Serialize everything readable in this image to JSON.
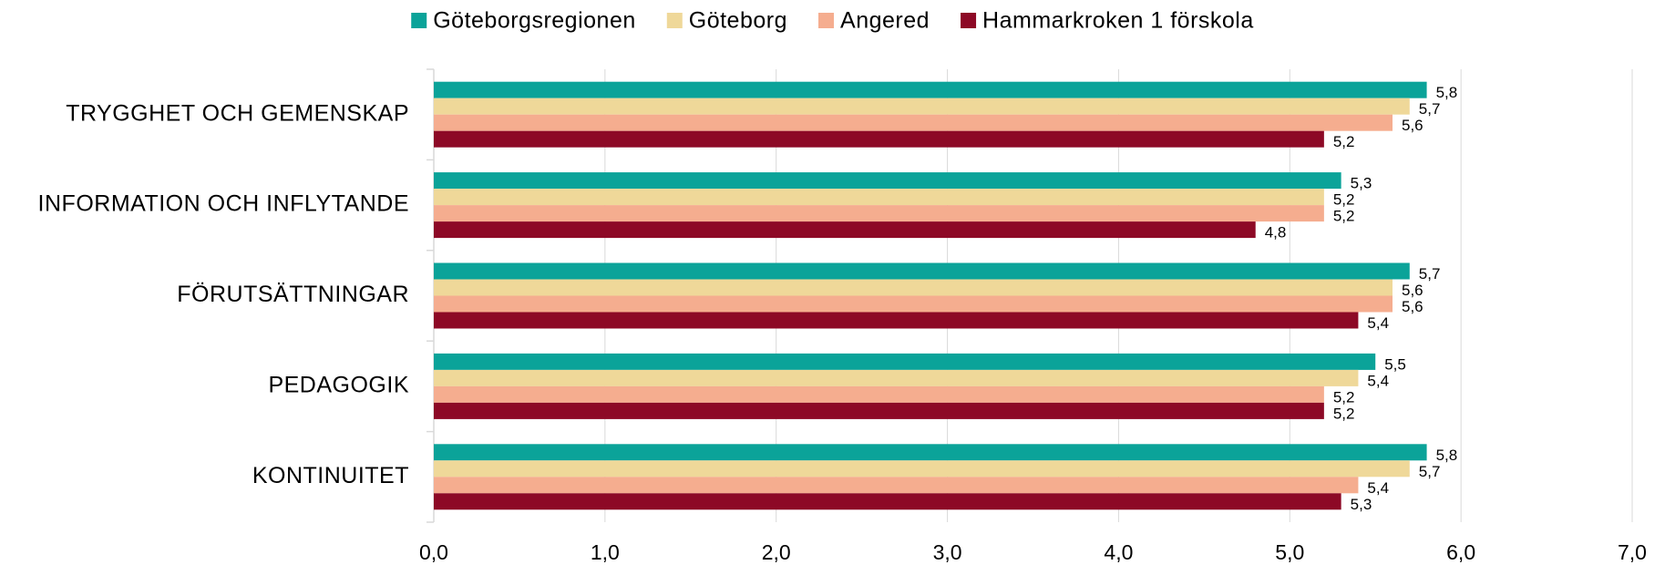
{
  "chart_data": {
    "type": "bar",
    "orientation": "horizontal",
    "categories": [
      "TRYGGHET OCH GEMENSKAP",
      "INFORMATION OCH INFLYTANDE",
      "FÖRUTSÄTTNINGAR",
      "PEDAGOGIK",
      "KONTINUITET"
    ],
    "series": [
      {
        "name": "Göteborgsregionen",
        "color": "#0ba399",
        "values": [
          5.8,
          5.3,
          5.7,
          5.5,
          5.8
        ],
        "value_labels": [
          "5,8",
          "5,3",
          "5,7",
          "5,5",
          "5,8"
        ]
      },
      {
        "name": "Göteborg",
        "color": "#efd899",
        "values": [
          5.7,
          5.2,
          5.6,
          5.4,
          5.7
        ],
        "value_labels": [
          "5,7",
          "5,2",
          "5,6",
          "5,4",
          "5,7"
        ]
      },
      {
        "name": "Angered",
        "color": "#f5ad8f",
        "values": [
          5.6,
          5.2,
          5.6,
          5.2,
          5.4
        ],
        "value_labels": [
          "5,6",
          "5,2",
          "5,6",
          "5,2",
          "5,4"
        ]
      },
      {
        "name": "Hammarkroken 1 förskola",
        "color": "#8d0926",
        "values": [
          5.2,
          4.8,
          5.4,
          5.2,
          5.3
        ],
        "value_labels": [
          "5,2",
          "4,8",
          "5,4",
          "5,2",
          "5,3"
        ]
      }
    ],
    "xlim": [
      0,
      7
    ],
    "xticks": [
      {
        "value": 0,
        "label": "0,0"
      },
      {
        "value": 1,
        "label": "1,0"
      },
      {
        "value": 2,
        "label": "2,0"
      },
      {
        "value": 3,
        "label": "3,0"
      },
      {
        "value": 4,
        "label": "4,0"
      },
      {
        "value": 5,
        "label": "5,0"
      },
      {
        "value": 6,
        "label": "6,0"
      },
      {
        "value": 7,
        "label": "7,0"
      }
    ],
    "grid": true,
    "legend": "top"
  }
}
